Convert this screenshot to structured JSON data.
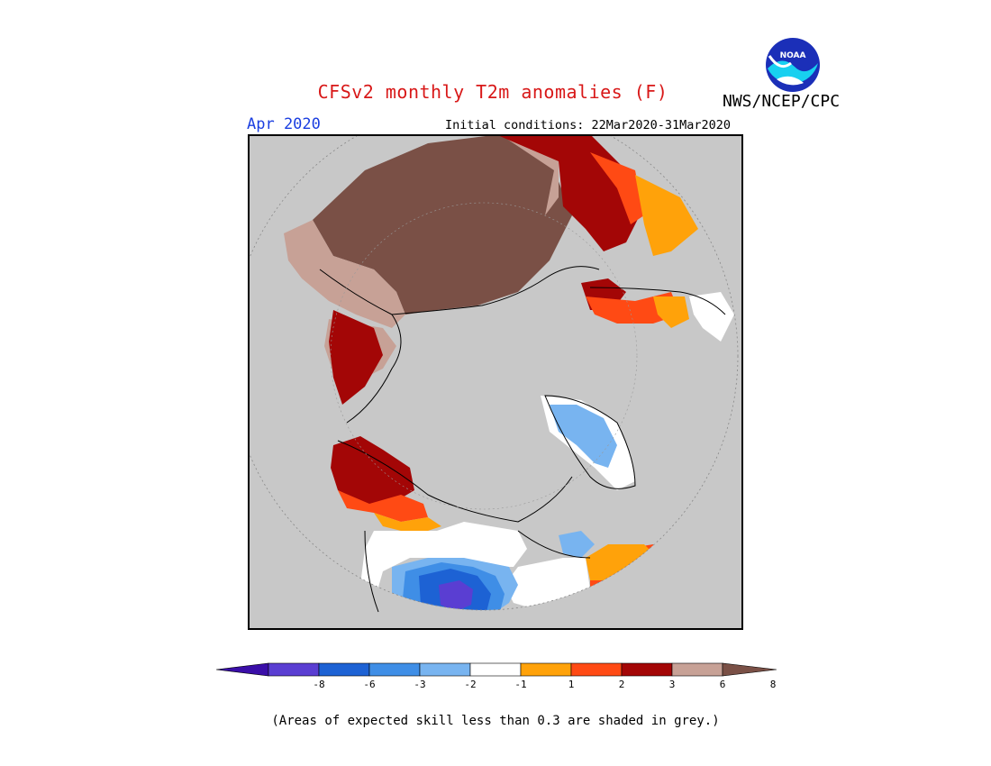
{
  "header": {
    "title": "CFSv2 monthly T2m anomalies (F)",
    "agency": "NWS/NCEP/CPC",
    "logo_text": "NOAA",
    "target_month": "Apr 2020",
    "initial_conditions": "Initial conditions: 22Mar2020-31Mar2020"
  },
  "colors": {
    "grey_low_skill": "#c8c8c8",
    "land_outline": "#000000",
    "scale": [
      "#3a0ea8",
      "#5a3ed2",
      "#1d62d4",
      "#3f8ee6",
      "#78b4f0",
      "#ffffff",
      "#ffa20a",
      "#ff4a14",
      "#a30606",
      "#c7a196",
      "#7a5046"
    ]
  },
  "legend": {
    "ticks": [
      "-8",
      "-6",
      "-3",
      "-2",
      "-1",
      "1",
      "2",
      "3",
      "6",
      "8"
    ]
  },
  "footer": {
    "note": "(Areas of expected skill less than 0.3 are shaded in grey.)"
  }
}
